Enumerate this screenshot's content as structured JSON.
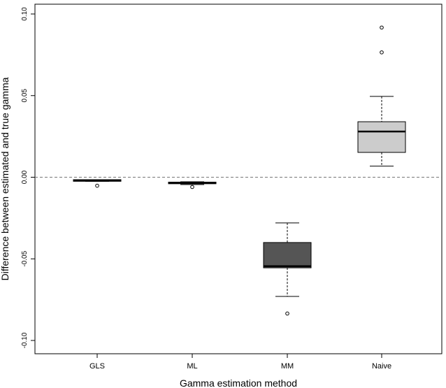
{
  "chart_data": {
    "type": "boxplot",
    "xlabel": "Gamma estimation method",
    "ylabel": "Difference between estimated and true gamma",
    "ylim": [
      -0.1,
      0.1
    ],
    "yticks": [
      "0.10",
      "0.05",
      "0.00",
      "-0.05",
      "-0.10"
    ],
    "ytick_values": [
      0.1,
      0.05,
      0.0,
      -0.05,
      -0.1
    ],
    "reference_line": 0.0,
    "categories": [
      "GLS",
      "ML",
      "MM",
      "Naive"
    ],
    "boxes": [
      {
        "category": "GLS",
        "whisker_low": -0.0025,
        "q1": -0.0025,
        "median": -0.002,
        "q3": -0.0015,
        "whisker_high": -0.0015,
        "outliers": [
          -0.0052
        ],
        "fill": "#ffffff"
      },
      {
        "category": "ML",
        "whisker_low": -0.0045,
        "q1": -0.004,
        "median": -0.0035,
        "q3": -0.003,
        "whisker_high": -0.0028,
        "outliers": [
          -0.006
        ],
        "fill": "#ffffff"
      },
      {
        "category": "MM",
        "whisker_low": -0.073,
        "q1": -0.0555,
        "median": -0.0545,
        "q3": -0.04,
        "whisker_high": -0.028,
        "outliers": [
          -0.0835
        ],
        "fill": "#555555"
      },
      {
        "category": "Naive",
        "whisker_low": 0.0068,
        "q1": 0.0152,
        "median": 0.028,
        "q3": 0.034,
        "whisker_high": 0.0495,
        "outliers": [
          0.0765,
          0.0917
        ],
        "fill": "#cccccc"
      }
    ]
  }
}
